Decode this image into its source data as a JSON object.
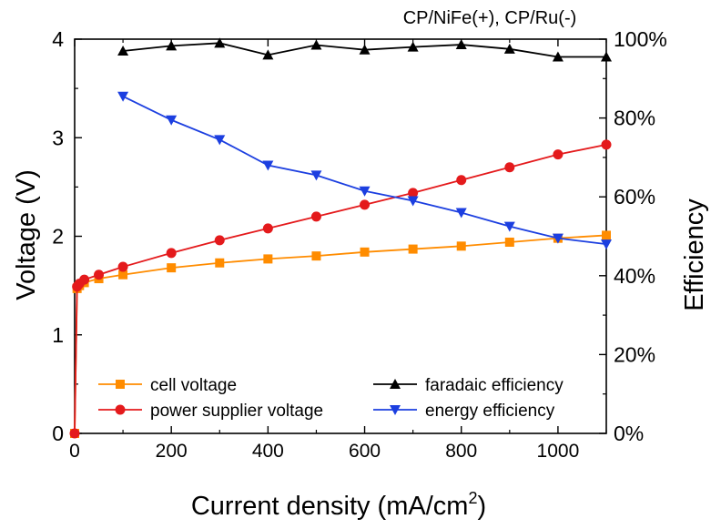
{
  "chart_data": {
    "type": "line",
    "title": "CP/NiFe(+), CP/Ru(-)",
    "xlabel": "Current density (mA/cm",
    "xlabel_sup": "2",
    "xlabel_close": ")",
    "ylabel_left": "Voltage (V)",
    "ylabel_right": "Efficiency",
    "xlim": [
      0,
      1100
    ],
    "ylim_left": [
      0,
      4
    ],
    "ylim_right": [
      0,
      100
    ],
    "x_ticks": [
      0,
      200,
      400,
      600,
      800,
      1000
    ],
    "x_tick_labels": [
      "0",
      "200",
      "400",
      "600",
      "800",
      "1000"
    ],
    "y_left_ticks": [
      0,
      1,
      2,
      3,
      4
    ],
    "y_left_tick_labels": [
      "0",
      "1",
      "2",
      "3",
      "4"
    ],
    "y_right_ticks": [
      0,
      20,
      40,
      60,
      80,
      100
    ],
    "y_right_tick_labels": [
      "0%",
      "20%",
      "40%",
      "60%",
      "80%",
      "100%"
    ],
    "grid": false,
    "legend_position": "bottom",
    "series": [
      {
        "name": "cell voltage",
        "axis": "left",
        "color": "#ff8c00",
        "marker": "square",
        "x": [
          0,
          5,
          10,
          20,
          50,
          100,
          200,
          300,
          400,
          500,
          600,
          700,
          800,
          900,
          1000,
          1100
        ],
        "y": [
          0,
          1.47,
          1.5,
          1.53,
          1.57,
          1.61,
          1.68,
          1.73,
          1.77,
          1.8,
          1.84,
          1.87,
          1.9,
          1.94,
          1.98,
          2.01
        ]
      },
      {
        "name": "power supplier voltage",
        "axis": "left",
        "color": "#e41a1c",
        "marker": "circle",
        "x": [
          0,
          5,
          10,
          20,
          50,
          100,
          200,
          300,
          400,
          500,
          600,
          700,
          800,
          900,
          1000,
          1100
        ],
        "y": [
          0,
          1.49,
          1.52,
          1.56,
          1.61,
          1.69,
          1.83,
          1.96,
          2.08,
          2.2,
          2.32,
          2.44,
          2.57,
          2.7,
          2.83,
          2.93
        ]
      },
      {
        "name": "faradaic efficiency",
        "axis": "right",
        "color": "#000000",
        "marker": "triangle-up",
        "x": [
          100,
          200,
          300,
          400,
          500,
          600,
          700,
          800,
          900,
          1000,
          1100
        ],
        "y": [
          97,
          98.3,
          99,
          96,
          98.5,
          97.3,
          98,
          98.6,
          97.5,
          95.5,
          95.5
        ]
      },
      {
        "name": "energy efficiency",
        "axis": "right",
        "color": "#1c3fe0",
        "marker": "triangle-down",
        "x": [
          100,
          200,
          300,
          400,
          500,
          600,
          700,
          800,
          900,
          1000,
          1100
        ],
        "y": [
          85.5,
          79.5,
          74.5,
          68,
          65.5,
          61.5,
          59,
          56,
          52.5,
          49.5,
          48
        ]
      }
    ]
  }
}
